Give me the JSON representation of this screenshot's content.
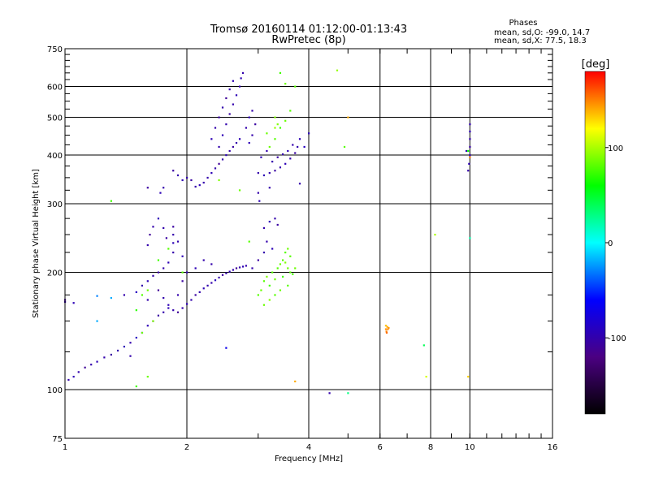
{
  "chart_data": {
    "type": "scatter",
    "title_line1": "Tromsø 20160114 01:12:00-01:13:43",
    "title_line2": "RwPretec (8p)",
    "stats": {
      "heading": "Phases",
      "line_o": "mean, sd,O: -99.0, 14.7",
      "line_x": "mean, sd,X:  77.5, 18.3"
    },
    "xlabel": "Frequency [MHz]",
    "ylabel": "Stationary phase Virtual Height [km]",
    "x_scale": "log",
    "y_scale": "log",
    "xlim": [
      1,
      16
    ],
    "ylim": [
      75,
      750
    ],
    "x_ticks": [
      1,
      2,
      4,
      6,
      8,
      10,
      16
    ],
    "x_tick_labels": [
      "1",
      "2",
      "4",
      "6",
      "8",
      "10",
      "16"
    ],
    "y_ticks": [
      75,
      100,
      200,
      300,
      400,
      500,
      600,
      750
    ],
    "y_tick_labels": [
      "75",
      "100",
      "200",
      "300",
      "400",
      "500",
      "600",
      "750"
    ],
    "grid": true,
    "colorbar": {
      "label": "[deg]",
      "min": -180,
      "max": 180,
      "ticks": [
        -100,
        0,
        100
      ],
      "tick_labels": [
        "-100",
        "0",
        "100"
      ],
      "colors": [
        "#000000",
        "#4b0082",
        "#0000ff",
        "#00ffff",
        "#00ff00",
        "#ffff00",
        "#ff0000"
      ]
    },
    "series": [
      {
        "points": [
          [
            1.02,
            106,
            -100
          ],
          [
            1.05,
            108,
            -95
          ],
          [
            1.08,
            111,
            -100
          ],
          [
            1.12,
            114,
            -110
          ],
          [
            1.16,
            116,
            -100
          ],
          [
            1.2,
            118,
            -95
          ],
          [
            1.25,
            121,
            -100
          ],
          [
            1.3,
            123,
            -105
          ],
          [
            1.35,
            126,
            -100
          ],
          [
            1.4,
            129,
            -95
          ],
          [
            1.45,
            132,
            -100
          ],
          [
            1.5,
            136,
            -90
          ],
          [
            1.55,
            140,
            -100
          ],
          [
            1.6,
            146,
            -95
          ],
          [
            1.65,
            150,
            -100
          ],
          [
            1.7,
            155,
            -105
          ],
          [
            1.75,
            158,
            -100
          ],
          [
            1.8,
            162,
            -95
          ],
          [
            1.85,
            160,
            -100
          ],
          [
            1.9,
            158,
            -110
          ],
          [
            1.95,
            162,
            -100
          ],
          [
            2.0,
            166,
            -95
          ],
          [
            2.05,
            170,
            -100
          ],
          [
            2.1,
            175,
            -105
          ],
          [
            2.15,
            178,
            -100
          ],
          [
            2.2,
            182,
            -95
          ],
          [
            2.25,
            185,
            -100
          ],
          [
            2.3,
            188,
            -100
          ],
          [
            2.35,
            191,
            -90
          ],
          [
            2.4,
            194,
            -100
          ],
          [
            2.45,
            197,
            -105
          ],
          [
            2.5,
            199,
            -100
          ],
          [
            2.55,
            201,
            -95
          ],
          [
            2.6,
            203,
            -100
          ],
          [
            2.65,
            205,
            -110
          ],
          [
            2.7,
            206,
            -100
          ],
          [
            2.75,
            207,
            -95
          ],
          [
            2.8,
            208,
            -100
          ],
          [
            1.0,
            168,
            -100
          ],
          [
            1.05,
            167,
            -95
          ],
          [
            1.4,
            175,
            -100
          ],
          [
            1.5,
            178,
            -90
          ],
          [
            1.55,
            185,
            -100
          ],
          [
            1.6,
            190,
            -95
          ],
          [
            1.65,
            196,
            -100
          ],
          [
            1.7,
            200,
            -105
          ],
          [
            1.75,
            205,
            -100
          ],
          [
            1.8,
            212,
            -95
          ],
          [
            1.6,
            170,
            -100
          ],
          [
            1.7,
            180,
            -110
          ],
          [
            1.75,
            172,
            -100
          ],
          [
            1.8,
            165,
            -95
          ],
          [
            1.9,
            175,
            -100
          ],
          [
            1.95,
            190,
            -105
          ],
          [
            2.0,
            200,
            -100
          ],
          [
            2.1,
            205,
            -95
          ],
          [
            2.2,
            215,
            -100
          ],
          [
            2.3,
            210,
            -100
          ],
          [
            1.85,
            225,
            -100
          ],
          [
            1.85,
            238,
            -95
          ],
          [
            1.85,
            250,
            -100
          ],
          [
            1.85,
            262,
            -105
          ],
          [
            1.9,
            240,
            -100
          ],
          [
            1.95,
            220,
            -95
          ],
          [
            1.6,
            235,
            -100
          ],
          [
            1.62,
            250,
            -110
          ],
          [
            1.65,
            262,
            -100
          ],
          [
            1.7,
            275,
            -95
          ],
          [
            1.75,
            260,
            -100
          ],
          [
            1.78,
            245,
            -105
          ],
          [
            2.2,
            340,
            -100
          ],
          [
            2.15,
            335,
            -95
          ],
          [
            2.1,
            332,
            -100
          ],
          [
            2.05,
            345,
            -105
          ],
          [
            2.25,
            350,
            -100
          ],
          [
            2.3,
            360,
            -95
          ],
          [
            2.35,
            370,
            -100
          ],
          [
            2.4,
            380,
            -110
          ],
          [
            2.45,
            390,
            -100
          ],
          [
            2.5,
            400,
            -95
          ],
          [
            2.55,
            410,
            -100
          ],
          [
            2.6,
            420,
            -105
          ],
          [
            2.65,
            430,
            -100
          ],
          [
            2.7,
            440,
            -95
          ],
          [
            2.4,
            420,
            -100
          ],
          [
            2.45,
            450,
            -95
          ],
          [
            2.5,
            480,
            -100
          ],
          [
            2.55,
            510,
            -105
          ],
          [
            2.6,
            540,
            -100
          ],
          [
            2.65,
            570,
            -95
          ],
          [
            2.7,
            600,
            -100
          ],
          [
            2.72,
            630,
            -95
          ],
          [
            2.75,
            650,
            -100
          ],
          [
            2.5,
            560,
            -110
          ],
          [
            2.55,
            590,
            -100
          ],
          [
            2.6,
            620,
            -95
          ],
          [
            2.45,
            530,
            -100
          ],
          [
            2.4,
            500,
            -105
          ],
          [
            2.35,
            470,
            -100
          ],
          [
            2.3,
            440,
            -95
          ],
          [
            2.8,
            470,
            -100
          ],
          [
            2.85,
            500,
            -95
          ],
          [
            2.9,
            520,
            -100
          ],
          [
            2.95,
            480,
            -105
          ],
          [
            2.9,
            450,
            -100
          ],
          [
            2.85,
            430,
            -95
          ],
          [
            2.0,
            350,
            -100
          ],
          [
            1.95,
            345,
            -95
          ],
          [
            1.9,
            355,
            -100
          ],
          [
            1.85,
            365,
            -105
          ],
          [
            1.75,
            330,
            -100
          ],
          [
            1.72,
            320,
            -95
          ],
          [
            3.0,
            360,
            -100
          ],
          [
            3.1,
            355,
            -95
          ],
          [
            3.2,
            360,
            -100
          ],
          [
            3.3,
            365,
            -105
          ],
          [
            3.4,
            372,
            -100
          ],
          [
            3.5,
            380,
            -95
          ],
          [
            3.6,
            392,
            -100
          ],
          [
            3.7,
            405,
            -105
          ],
          [
            3.75,
            420,
            -100
          ],
          [
            3.8,
            440,
            -95
          ],
          [
            3.15,
            410,
            -100
          ],
          [
            3.05,
            395,
            -95
          ],
          [
            3.25,
            385,
            -100
          ],
          [
            3.35,
            395,
            -105
          ],
          [
            3.45,
            402,
            -100
          ],
          [
            3.55,
            410,
            -95
          ],
          [
            3.65,
            425,
            -100
          ],
          [
            3.0,
            320,
            -100
          ],
          [
            3.02,
            305,
            -95
          ],
          [
            3.2,
            330,
            -100
          ],
          [
            3.1,
            260,
            -100
          ],
          [
            3.2,
            270,
            -95
          ],
          [
            3.3,
            275,
            -100
          ],
          [
            3.35,
            265,
            -105
          ],
          [
            3.15,
            240,
            -100
          ],
          [
            3.25,
            230,
            -95
          ],
          [
            3.1,
            225,
            -100
          ],
          [
            3.0,
            215,
            -105
          ],
          [
            2.9,
            205,
            -100
          ],
          [
            3.9,
            420,
            -90
          ],
          [
            4.0,
            455,
            -95
          ],
          [
            9.9,
            365,
            -100
          ],
          [
            9.95,
            380,
            -95
          ],
          [
            10.0,
            400,
            -100
          ],
          [
            10.0,
            420,
            -105
          ],
          [
            10.0,
            440,
            -100
          ],
          [
            10.0,
            460,
            -95
          ],
          [
            10.0,
            480,
            -100
          ],
          [
            9.8,
            410,
            -95
          ],
          [
            4.5,
            98,
            -100
          ],
          [
            3.8,
            338,
            -100
          ],
          [
            1.2,
            150,
            -20
          ],
          [
            1.3,
            172,
            -20
          ],
          [
            1.2,
            174,
            -30
          ],
          [
            1.55,
            175,
            80
          ],
          [
            1.6,
            180,
            85
          ],
          [
            1.65,
            150,
            90
          ],
          [
            1.7,
            215,
            75
          ],
          [
            1.5,
            160,
            70
          ],
          [
            1.55,
            140,
            85
          ],
          [
            1.8,
            230,
            80
          ],
          [
            2.4,
            345,
            90
          ],
          [
            2.7,
            325,
            85
          ],
          [
            2.85,
            240,
            80
          ],
          [
            3.0,
            175,
            80
          ],
          [
            3.05,
            180,
            85
          ],
          [
            3.1,
            190,
            80
          ],
          [
            3.15,
            195,
            90
          ],
          [
            3.2,
            185,
            75
          ],
          [
            3.25,
            200,
            80
          ],
          [
            3.3,
            192,
            85
          ],
          [
            3.35,
            205,
            80
          ],
          [
            3.4,
            210,
            85
          ],
          [
            3.45,
            215,
            80
          ],
          [
            3.5,
            212,
            90
          ],
          [
            3.55,
            205,
            85
          ],
          [
            3.6,
            200,
            80
          ],
          [
            3.65,
            198,
            75
          ],
          [
            3.7,
            205,
            85
          ],
          [
            3.5,
            225,
            80
          ],
          [
            3.55,
            230,
            85
          ],
          [
            3.6,
            220,
            80
          ],
          [
            3.45,
            195,
            75
          ],
          [
            3.55,
            185,
            80
          ],
          [
            3.4,
            180,
            85
          ],
          [
            3.3,
            175,
            80
          ],
          [
            3.2,
            170,
            90
          ],
          [
            3.1,
            165,
            85
          ],
          [
            3.2,
            420,
            85
          ],
          [
            3.3,
            440,
            80
          ],
          [
            3.4,
            470,
            75
          ],
          [
            3.5,
            490,
            85
          ],
          [
            3.3,
            500,
            90
          ],
          [
            3.6,
            520,
            80
          ],
          [
            3.5,
            610,
            85
          ],
          [
            3.4,
            650,
            75
          ],
          [
            3.7,
            600,
            80
          ],
          [
            3.15,
            455,
            85
          ],
          [
            3.3,
            470,
            95
          ],
          [
            3.35,
            480,
            90
          ],
          [
            4.7,
            660,
            95
          ],
          [
            4.9,
            420,
            80
          ],
          [
            1.3,
            305,
            75
          ],
          [
            1.6,
            108,
            85
          ],
          [
            1.5,
            102,
            75
          ],
          [
            1.95,
            200,
            80
          ],
          [
            6.2,
            143,
            145
          ],
          [
            6.22,
            141,
            150
          ],
          [
            6.25,
            145,
            140
          ],
          [
            6.23,
            140,
            155
          ],
          [
            6.27,
            143,
            150
          ],
          [
            6.2,
            146,
            135
          ],
          [
            6.3,
            144,
            145
          ],
          [
            10.0,
            395,
            150
          ],
          [
            9.9,
            410,
            60
          ],
          [
            10.0,
            245,
            20
          ],
          [
            9.9,
            108,
            130
          ],
          [
            8.2,
            250,
            100
          ],
          [
            7.8,
            108,
            110
          ],
          [
            7.7,
            130,
            40
          ],
          [
            5.0,
            98,
            30
          ],
          [
            5.0,
            500,
            140
          ],
          [
            3.7,
            105,
            140
          ],
          [
            2.5,
            128,
            -70
          ],
          [
            1.0,
            170,
            -110
          ],
          [
            1.45,
            122,
            -100
          ],
          [
            1.6,
            330,
            -105
          ]
        ]
      }
    ]
  }
}
